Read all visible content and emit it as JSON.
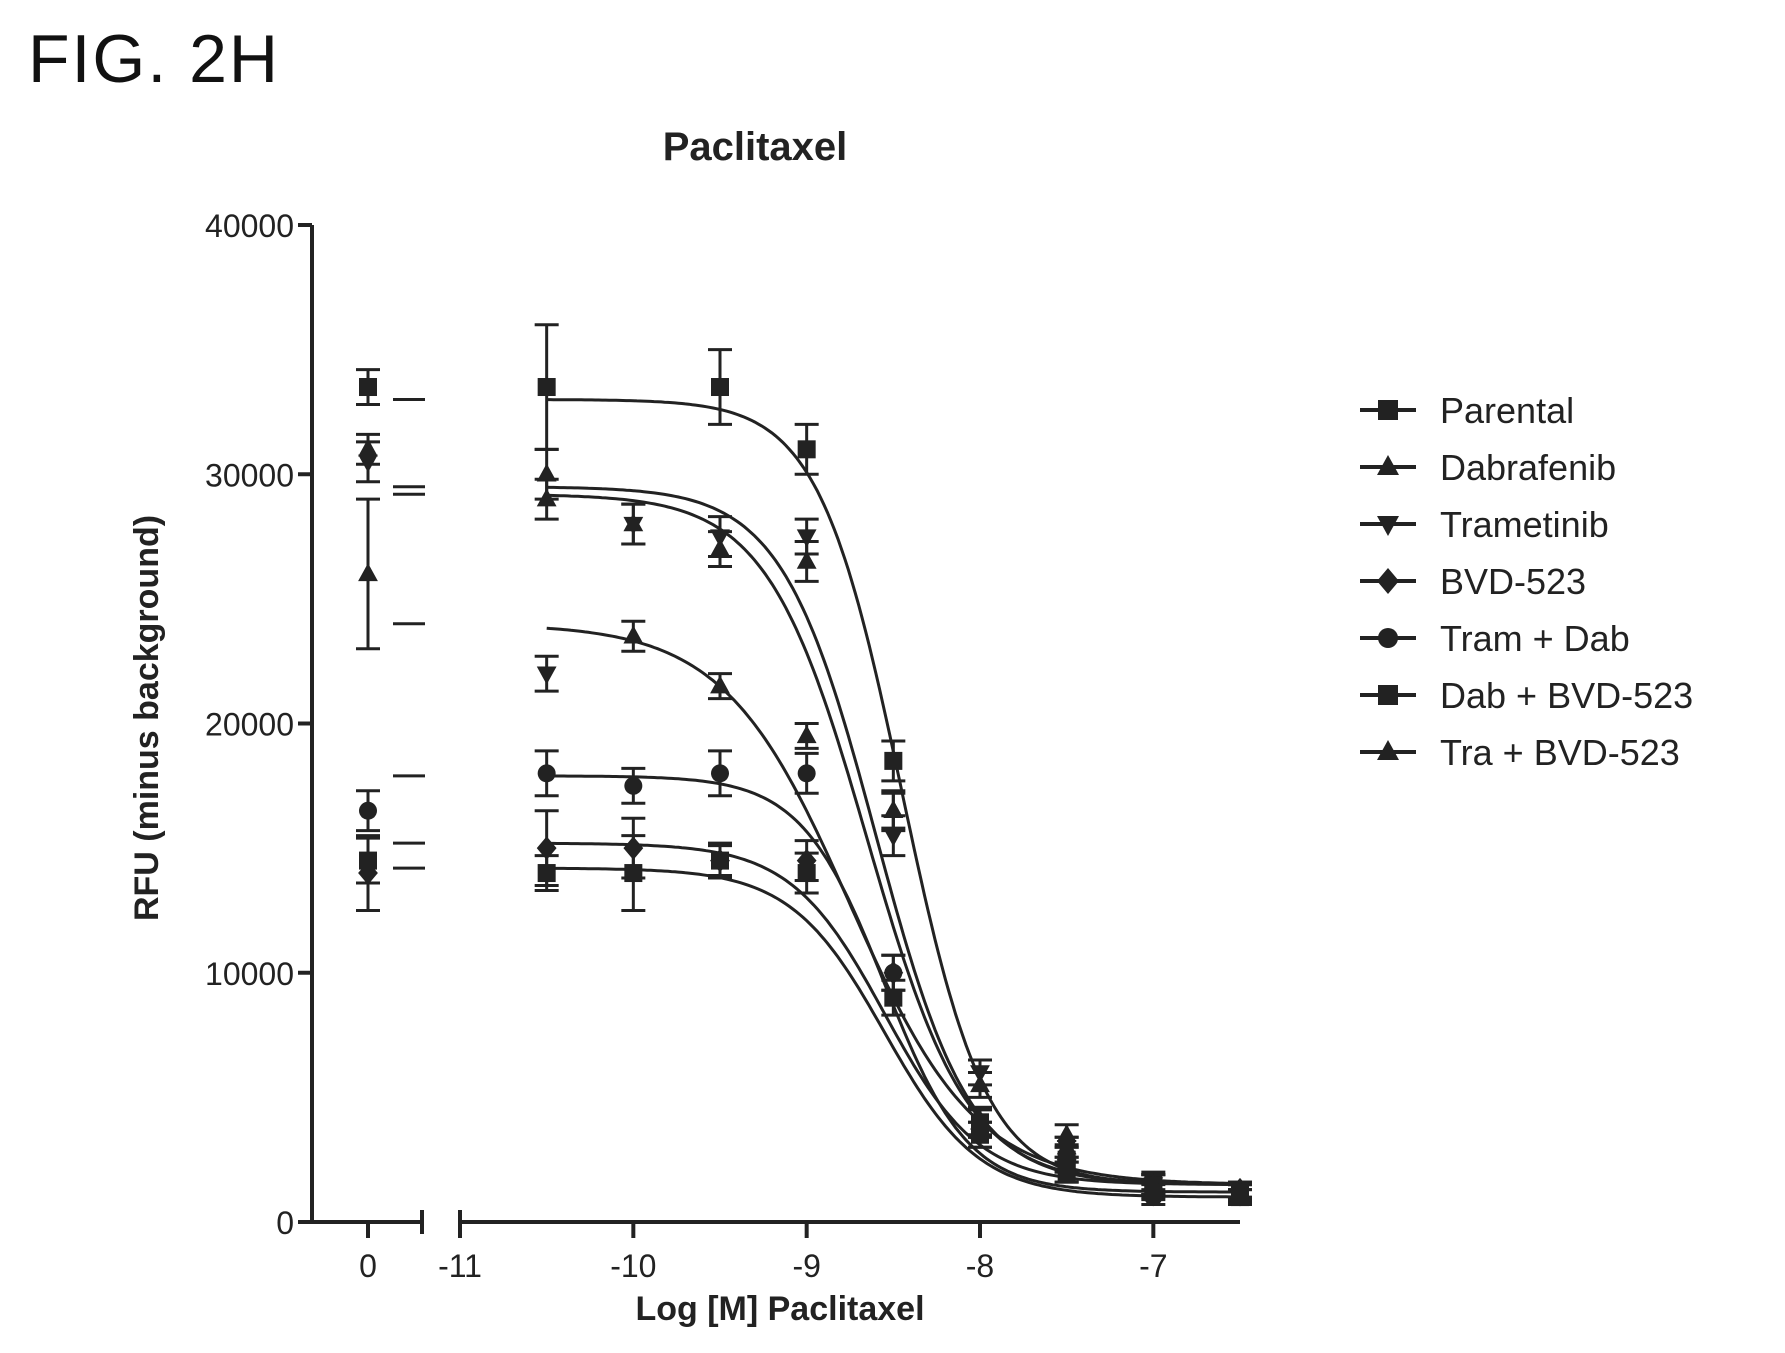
{
  "figure_label": "FIG. 2H",
  "chart_data": {
    "type": "scatter",
    "title": "Paclitaxel",
    "xlabel": "Log [M] Paclitaxel",
    "ylabel": "RFU (minus background)",
    "ylim": [
      0,
      40000
    ],
    "y_ticks": [
      0,
      10000,
      20000,
      30000,
      40000
    ],
    "y_tick_labels": [
      "0",
      "10000",
      "20000",
      "30000",
      "40000"
    ],
    "x_axis_break": true,
    "x_ticks": [
      {
        "value": "0",
        "label": "0",
        "segment": "control"
      },
      {
        "value": -11,
        "label": "-11",
        "segment": "log"
      },
      {
        "value": -10,
        "label": "-10",
        "segment": "log"
      },
      {
        "value": -9,
        "label": "-9",
        "segment": "log"
      },
      {
        "value": -8,
        "label": "-8",
        "segment": "log"
      },
      {
        "value": -7,
        "label": "-7",
        "segment": "log"
      }
    ],
    "xlim_log_segment": [
      -11,
      -6.5
    ],
    "x": [
      -10.5,
      -10,
      -9.5,
      -9,
      -8.5,
      -8,
      -7.5,
      -7,
      -6.5
    ],
    "legend_position": "right",
    "grid": false,
    "color": "#222222",
    "series": [
      {
        "name": "Parental",
        "marker": "square",
        "control": 33500,
        "control_err": 700,
        "values": [
          33500,
          null,
          33500,
          31000,
          18500,
          4000,
          2500,
          1500,
          1200
        ],
        "errors": [
          2500,
          null,
          1500,
          1000,
          800,
          600,
          500,
          500,
          400
        ],
        "fit": {
          "top": 33000,
          "bottom": 1500,
          "logec50": -8.45,
          "hill": 1.8
        }
      },
      {
        "name": "Dabrafenib",
        "marker": "triangle-up",
        "control": 26000,
        "control_err": 3000,
        "values": [
          29000,
          23500,
          21500,
          19500,
          16500,
          4000,
          3000,
          1500,
          1200
        ],
        "errors": [
          800,
          600,
          500,
          500,
          700,
          500,
          400,
          400,
          300
        ],
        "fit": {
          "top": 24000,
          "bottom": 1500,
          "logec50": -8.75,
          "hill": 1.2
        }
      },
      {
        "name": "Trametinib",
        "marker": "triangle-down",
        "control": 30500,
        "control_err": 800,
        "values": [
          22000,
          28000,
          27500,
          27500,
          15500,
          6000,
          3000,
          1500,
          1200
        ],
        "errors": [
          700,
          800,
          800,
          700,
          800,
          500,
          400,
          400,
          300
        ],
        "fit": {
          "top": 29500,
          "bottom": 1500,
          "logec50": -8.6,
          "hill": 1.6
        }
      },
      {
        "name": "BVD-523",
        "marker": "diamond",
        "control": 14000,
        "control_err": 1500,
        "values": [
          15000,
          15000,
          14500,
          14500,
          10000,
          4000,
          2500,
          1500,
          1300
        ],
        "errors": [
          1500,
          1200,
          700,
          800,
          700,
          600,
          500,
          400,
          300
        ],
        "fit": {
          "top": 15200,
          "bottom": 1500,
          "logec50": -8.55,
          "hill": 1.6
        }
      },
      {
        "name": "Tram + Dab",
        "marker": "circle",
        "control": 16500,
        "control_err": 800,
        "values": [
          18000,
          17500,
          18000,
          18000,
          10000,
          3500,
          2000,
          1000,
          1000
        ],
        "errors": [
          900,
          700,
          900,
          800,
          700,
          500,
          400,
          300,
          300
        ],
        "fit": {
          "top": 17900,
          "bottom": 1200,
          "logec50": -8.55,
          "hill": 1.8
        }
      },
      {
        "name": "Dab + BVD-523",
        "marker": "square",
        "control": 14500,
        "control_err": 900,
        "values": [
          14000,
          14000,
          14500,
          14000,
          9000,
          3500,
          2000,
          1200,
          1000
        ],
        "errors": [
          700,
          1500,
          600,
          800,
          700,
          500,
          400,
          300,
          300
        ],
        "fit": {
          "top": 14200,
          "bottom": 1000,
          "logec50": -8.55,
          "hill": 1.6
        }
      },
      {
        "name": "Tra + BVD-523",
        "marker": "triangle-up",
        "control": 31000,
        "control_err": 600,
        "values": [
          30000,
          28000,
          27000,
          26500,
          16500,
          5500,
          3500,
          1500,
          1200
        ],
        "errors": [
          1000,
          800,
          700,
          800,
          800,
          500,
          400,
          400,
          300
        ],
        "fit": {
          "top": 29200,
          "bottom": 1500,
          "logec50": -8.65,
          "hill": 1.5
        }
      }
    ]
  }
}
